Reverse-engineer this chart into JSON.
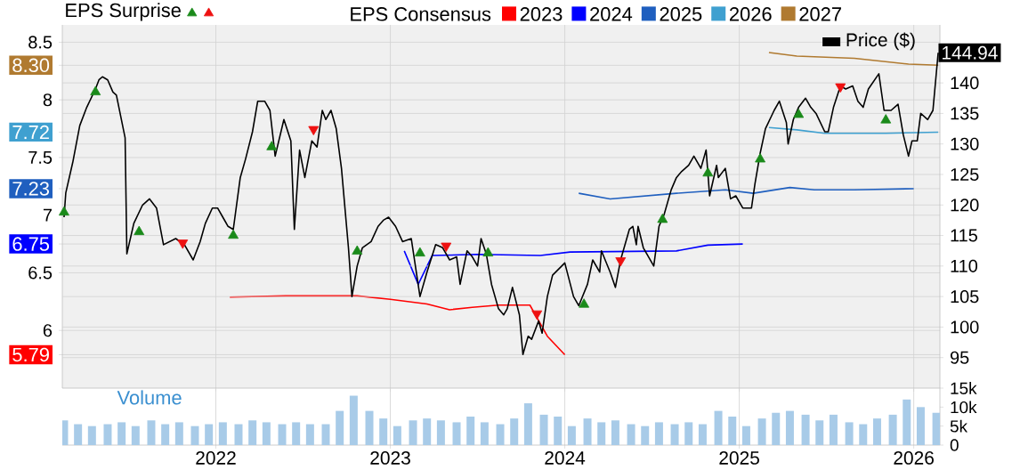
{
  "chart_data": [
    {
      "type": "line",
      "annotations": [
        "EPS Surprise"
      ],
      "legend_title": "EPS Consensus",
      "legend": "top",
      "grid": true,
      "tick_labels": "y",
      "xlim": [
        2021.12,
        2026.15
      ],
      "xticks": [
        2022,
        2023,
        2024,
        2025,
        2026
      ],
      "ylim": [
        5.5,
        8.65
      ],
      "yticks": [
        8.5,
        {
          "value": 8.3,
          "label": "8.30"
        },
        8,
        {
          "value": 7.72,
          "label": "7.72"
        },
        7.5,
        {
          "value": 7.23,
          "label": "7.23"
        },
        7,
        {
          "value": 6.75,
          "label": "6.75"
        },
        6.5,
        6,
        {
          "value": 5.79,
          "label": "5.79"
        }
      ],
      "y2lim": [
        90,
        149.5
      ],
      "y2ticks": [
        95,
        100,
        105,
        110,
        115,
        120,
        125,
        130,
        135,
        140
      ],
      "series": [
        {
          "name": "2023",
          "color": "#ff0000",
          "x": [
            2022.08,
            2022.4,
            2022.81,
            2023.0,
            2023.21,
            2023.34,
            2023.47,
            2023.62,
            2023.8,
            2023.9,
            2024.0
          ],
          "values": [
            6.29,
            6.3,
            6.3,
            6.27,
            6.23,
            6.18,
            6.2,
            6.22,
            6.22,
            5.95,
            5.79
          ]
        },
        {
          "name": "2024",
          "color": "#0000ff",
          "x": [
            2023.08,
            2023.16,
            2023.24,
            2023.5,
            2023.86,
            2024.03,
            2024.64,
            2024.82,
            2025.02
          ],
          "values": [
            6.69,
            6.4,
            6.65,
            6.66,
            6.65,
            6.68,
            6.69,
            6.74,
            6.75
          ]
        },
        {
          "name": "2025",
          "color": "#1f5fbf",
          "x": [
            2024.08,
            2024.26,
            2024.64,
            2024.92,
            2025.08,
            2025.29,
            2025.43,
            2025.66,
            2026.0
          ],
          "values": [
            7.19,
            7.14,
            7.19,
            7.22,
            7.19,
            7.24,
            7.22,
            7.22,
            7.23
          ]
        },
        {
          "name": "2026",
          "color": "#3fa0d0",
          "x": [
            2025.17,
            2025.33,
            2025.49,
            2025.84,
            2026.14
          ],
          "values": [
            7.76,
            7.74,
            7.71,
            7.71,
            7.72
          ]
        },
        {
          "name": "2027",
          "color": "#b07a30",
          "x": [
            2025.17,
            2025.33,
            2025.66,
            2025.97,
            2026.14
          ],
          "values": [
            8.41,
            8.38,
            8.36,
            8.31,
            8.3
          ]
        },
        {
          "name": "Price ($)",
          "color": "#000000",
          "axis": "y2",
          "x": [
            2021.13,
            2021.14,
            2021.18,
            2021.22,
            2021.26,
            2021.31,
            2021.33,
            2021.35,
            2021.38,
            2021.41,
            2021.43,
            2021.48,
            2021.49,
            2021.53,
            2021.58,
            2021.62,
            2021.66,
            2021.7,
            2021.77,
            2021.82,
            2021.87,
            2021.91,
            2021.94,
            2021.98,
            2022.01,
            2022.04,
            2022.07,
            2022.1,
            2022.14,
            2022.17,
            2022.21,
            2022.24,
            2022.28,
            2022.31,
            2022.34,
            2022.39,
            2022.43,
            2022.45,
            2022.48,
            2022.51,
            2022.55,
            2022.58,
            2022.61,
            2022.63,
            2022.66,
            2022.69,
            2022.72,
            2022.76,
            2022.78,
            2022.81,
            2022.84,
            2022.89,
            2022.93,
            2022.96,
            2022.99,
            2023.03,
            2023.07,
            2023.12,
            2023.17,
            2023.21,
            2023.26,
            2023.3,
            2023.34,
            2023.38,
            2023.4,
            2023.44,
            2023.47,
            2023.5,
            2023.52,
            2023.55,
            2023.58,
            2023.62,
            2023.65,
            2023.67,
            2023.7,
            2023.74,
            2023.76,
            2023.79,
            2023.81,
            2023.85,
            2023.87,
            2023.9,
            2023.93,
            2024.0,
            2024.05,
            2024.08,
            2024.13,
            2024.16,
            2024.2,
            2024.21,
            2024.26,
            2024.29,
            2024.32,
            2024.37,
            2024.39,
            2024.41,
            2024.42,
            2024.45,
            2024.51,
            2024.54,
            2024.57,
            2024.61,
            2024.64,
            2024.67,
            2024.71,
            2024.74,
            2024.78,
            2024.81,
            2024.83,
            2024.87,
            2024.88,
            2024.92,
            2024.95,
            2024.98,
            2025.02,
            2025.07,
            2025.09,
            2025.12,
            2025.15,
            2025.2,
            2025.23,
            2025.27,
            2025.28,
            2025.31,
            2025.34,
            2025.38,
            2025.41,
            2025.44,
            2025.49,
            2025.51,
            2025.54,
            2025.58,
            2025.61,
            2025.65,
            2025.68,
            2025.71,
            2025.74,
            2025.8,
            2025.83,
            2025.87,
            2025.91,
            2025.94,
            2025.97,
            2025.99,
            2026.02,
            2026.04,
            2026.08,
            2026.11,
            2026.14
          ],
          "values": [
            118,
            122,
            127,
            133,
            136,
            139,
            140.5,
            141,
            140.5,
            138.5,
            138,
            131,
            112,
            117,
            120,
            121,
            119.5,
            113.5,
            114.5,
            113.5,
            111,
            114,
            117,
            119.5,
            119.5,
            118,
            116.5,
            116,
            124.5,
            127.5,
            132,
            137,
            137,
            135.5,
            128,
            134,
            130.5,
            116,
            129,
            124.5,
            130.5,
            129.5,
            135.5,
            134,
            135.5,
            132.5,
            126,
            113,
            105,
            110,
            113,
            114,
            116.5,
            117.5,
            118,
            116.5,
            114,
            114.5,
            105,
            109,
            113.5,
            113,
            111,
            111.5,
            107,
            112.5,
            111.5,
            110,
            114.5,
            112,
            107,
            103,
            102,
            103,
            106.5,
            102,
            95.5,
            98.5,
            98,
            101,
            99,
            105,
            108.5,
            110.5,
            105,
            103.5,
            107,
            111,
            109,
            112.5,
            109,
            106.5,
            111,
            116,
            116.5,
            113.5,
            116.5,
            113,
            110,
            116.5,
            118.5,
            122.5,
            124.5,
            125.5,
            126.5,
            128,
            126,
            129,
            121.5,
            126.5,
            124.5,
            126,
            121,
            121.5,
            119.5,
            119.5,
            123.5,
            128.5,
            132.5,
            135.5,
            137,
            133.5,
            130,
            134,
            136,
            137.5,
            136,
            135,
            132,
            132,
            136,
            139.5,
            139,
            139.5,
            137,
            136,
            139,
            141.5,
            135.5,
            135.5,
            136.5,
            131.5,
            128,
            130.5,
            130.5,
            135,
            134,
            135.5,
            144.94
          ],
          "value_labels": [
            null,
            null,
            null,
            null,
            null,
            null,
            null,
            null,
            null,
            null,
            null,
            null,
            null,
            null,
            null,
            null,
            null,
            null,
            null,
            null,
            null,
            null,
            null,
            null,
            null,
            null,
            null,
            null,
            null,
            null,
            null,
            null,
            null,
            null,
            null,
            null,
            null,
            null,
            null,
            null,
            null,
            null,
            null,
            null,
            null,
            null,
            null,
            null,
            null,
            null,
            null,
            null,
            null,
            null,
            null,
            null,
            null,
            null,
            null,
            null,
            null,
            null,
            null,
            null,
            null,
            null,
            null,
            null,
            null,
            null,
            null,
            null,
            null,
            null,
            null,
            null,
            null,
            null,
            null,
            null,
            null,
            null,
            null,
            null,
            null,
            null,
            null,
            null,
            null,
            null,
            null,
            null,
            null,
            null,
            null,
            null,
            null,
            null,
            null,
            null,
            null,
            null,
            null,
            null,
            null,
            null,
            null,
            null,
            null,
            null,
            null,
            null,
            null,
            null,
            null,
            null,
            null,
            null,
            null,
            null,
            null,
            null,
            null,
            null,
            null,
            null,
            null,
            null,
            null,
            null,
            null,
            null,
            null,
            null,
            null,
            null,
            null,
            null,
            null,
            null,
            null,
            null,
            null,
            null,
            null,
            null,
            null,
            null,
            "144.94"
          ]
        },
        {
          "type": "scatter",
          "color": "#1a8a1a",
          "axis": "y2",
          "marker": "triangle",
          "x": [
            2021.13,
            2021.31,
            2021.56,
            2022.1,
            2022.32,
            2022.81,
            2023.17,
            2023.56,
            2024.11,
            2024.56,
            2024.82,
            2025.12,
            2025.34,
            2025.84
          ],
          "values": [
            118.8,
            138.5,
            115.6,
            115,
            129.5,
            112.4,
            112.1,
            112.1,
            103.7,
            117.6,
            125.2,
            127.5,
            134.8,
            133.9
          ]
        },
        {
          "type": "scatter",
          "color": "#ee1111",
          "axis": "y2",
          "marker": "triangle down",
          "x": [
            2021.81,
            2022.56,
            2023.32,
            2023.84,
            2024.32,
            2025.58
          ],
          "values": [
            113.8,
            132.4,
            113.3,
            102.2,
            110.9,
            139.4
          ]
        }
      ]
    },
    {
      "type": "bar",
      "ylabel": "Volume",
      "color": "#a8cbe8",
      "grid": "x",
      "xlim": [
        2021.12,
        2026.15
      ],
      "xticks": [
        2022,
        2023,
        2024,
        2025,
        2026
      ],
      "ylim": [
        0,
        15000
      ],
      "yticks": [
        {
          "value": 0,
          "label": "0"
        },
        {
          "value": 5000,
          "label": "5k"
        },
        {
          "value": 10000,
          "label": "10k"
        },
        {
          "value": 15000,
          "label": "15k"
        }
      ],
      "x": [
        2021.13,
        2021.21,
        2021.29,
        2021.38,
        2021.46,
        2021.54,
        2021.63,
        2021.71,
        2021.79,
        2021.88,
        2021.96,
        2022.04,
        2022.13,
        2022.21,
        2022.29,
        2022.38,
        2022.46,
        2022.54,
        2022.63,
        2022.71,
        2022.79,
        2022.88,
        2022.96,
        2023.04,
        2023.13,
        2023.21,
        2023.29,
        2023.38,
        2023.46,
        2023.54,
        2023.63,
        2023.71,
        2023.79,
        2023.88,
        2023.96,
        2024.04,
        2024.13,
        2024.21,
        2024.29,
        2024.38,
        2024.46,
        2024.54,
        2024.63,
        2024.71,
        2024.79,
        2024.88,
        2024.96,
        2025.04,
        2025.13,
        2025.21,
        2025.29,
        2025.38,
        2025.46,
        2025.54,
        2025.63,
        2025.71,
        2025.79,
        2025.88,
        2025.96,
        2026.04,
        2026.13
      ],
      "values": [
        6500,
        5500,
        5000,
        5500,
        6000,
        5000,
        6500,
        5500,
        6000,
        5000,
        5500,
        6000,
        5500,
        6500,
        6000,
        5500,
        6000,
        5500,
        5500,
        9000,
        13000,
        9000,
        7000,
        5000,
        6500,
        7000,
        6500,
        6000,
        7500,
        6000,
        5500,
        7000,
        11000,
        8000,
        7500,
        5000,
        7000,
        6000,
        6500,
        5500,
        5000,
        6000,
        5500,
        6000,
        5500,
        9000,
        7500,
        5000,
        7000,
        8500,
        9000,
        8000,
        6500,
        8000,
        6000,
        5500,
        7000,
        8000,
        12000,
        10000,
        8500
      ]
    }
  ]
}
